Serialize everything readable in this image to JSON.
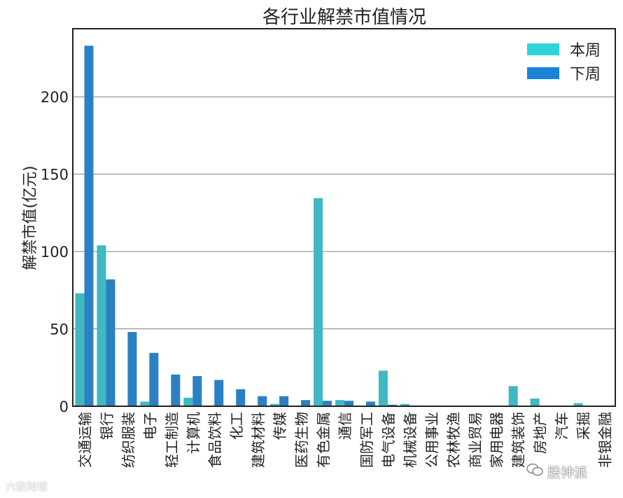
{
  "colors": {
    "this_week": "#3fb8c2",
    "next_week": "#2b80c4",
    "grid": "#808080",
    "legend_this_week": "#2fd3d8",
    "legend_next_week": "#1a84da"
  },
  "chart_data": {
    "type": "bar",
    "title": "各行业解禁市值情况",
    "xlabel": "",
    "ylabel": "解禁市值(亿元)",
    "ylim": [
      0,
      244
    ],
    "yticks": [
      0,
      50,
      100,
      150,
      200
    ],
    "grid": "horizontal",
    "legend_position": "top-right",
    "categories": [
      "交通运输",
      "银行",
      "纺织服装",
      "电子",
      "轻工制造",
      "计算机",
      "食品饮料",
      "化工",
      "建筑材料",
      "传媒",
      "医药生物",
      "有色金属",
      "通信",
      "国防军工",
      "电气设备",
      "机械设备",
      "公用事业",
      "农林牧渔",
      "商业贸易",
      "家用电器",
      "建筑装饰",
      "房地产",
      "汽车",
      "采掘",
      "非银金融"
    ],
    "series": [
      {
        "name": "本周",
        "values": [
          73,
          104,
          0,
          3,
          0,
          5.5,
          0,
          0,
          0,
          1.5,
          0,
          134.5,
          4,
          0,
          23,
          1.5,
          0,
          0,
          0,
          0,
          13,
          5,
          0,
          2,
          0
        ]
      },
      {
        "name": "下周",
        "values": [
          233,
          82,
          48,
          34.5,
          20.5,
          19.5,
          17,
          11,
          6.5,
          6.5,
          4,
          3.5,
          3.5,
          3,
          1,
          0.5,
          0,
          0,
          0,
          0,
          0,
          0,
          0,
          0,
          0
        ]
      }
    ]
  },
  "watermark_right": "股神派",
  "watermark_left": "六数跨境"
}
